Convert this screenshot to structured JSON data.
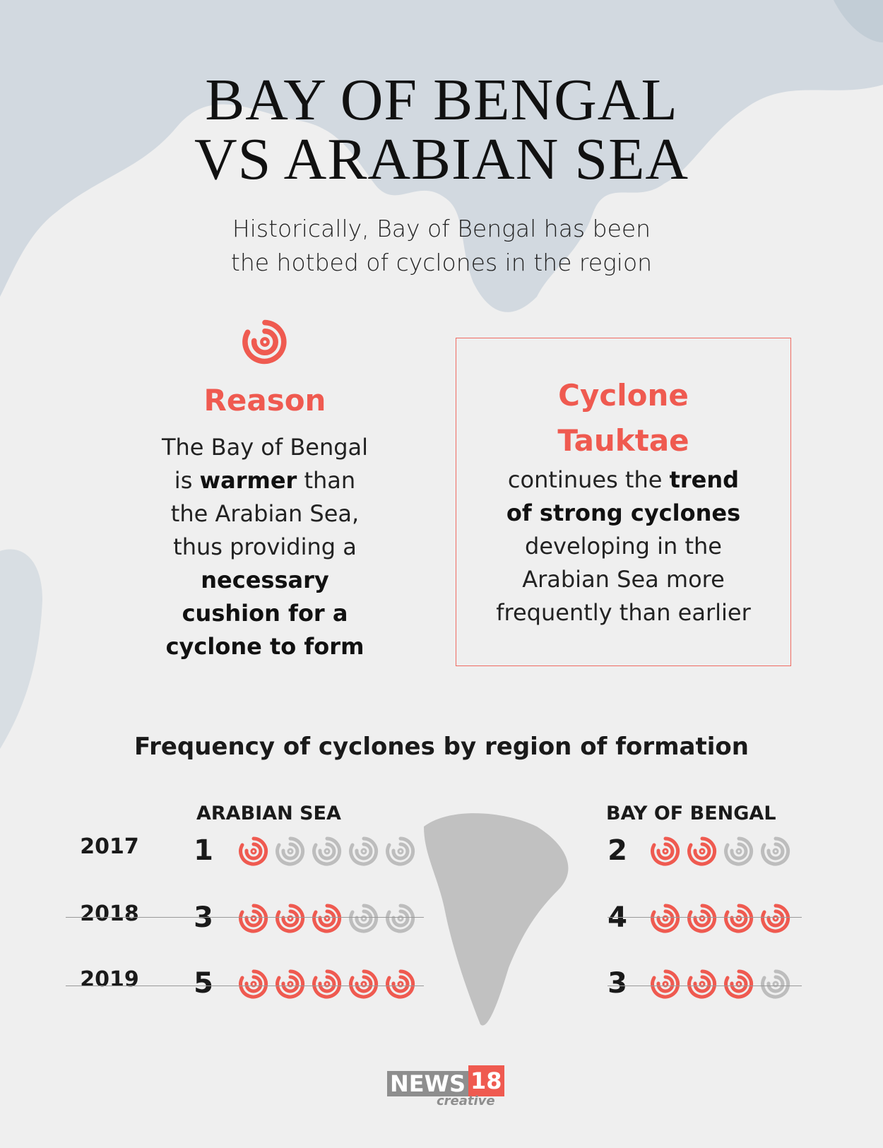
{
  "title": {
    "line1": "BAY OF BENGAL",
    "line2": "VS ARABIAN SEA"
  },
  "subtitle": {
    "line1": "Historically, Bay of Bengal has been",
    "line2": "the hotbed of cyclones in the region"
  },
  "reason": {
    "icon": "cyclone-icon",
    "heading": "Reason",
    "lines": [
      "The Bay of Bengal",
      "is ",
      "warmer",
      " than",
      "the Arabian Sea,",
      "thus providing a",
      "necessary",
      "cushion for a",
      "cyclone to form"
    ]
  },
  "tauktae": {
    "heading_line1": "Cyclone",
    "heading_line2": "Tauktae",
    "lines": [
      "continues the ",
      "trend",
      "of strong cyclones",
      "developing in the",
      "Arabian Sea more",
      "frequently than earlier"
    ]
  },
  "colors": {
    "accent": "#ef5a50",
    "inactive": "#bdbdbd",
    "land": "#c8d2db"
  },
  "chart_data": {
    "type": "table",
    "title": "Frequency of cyclones by region of formation",
    "columns": [
      "ARABIAN SEA",
      "BAY OF BENGAL"
    ],
    "rows": [
      {
        "year": "2017",
        "arabian_sea": 1,
        "bay_of_bengal": 2
      },
      {
        "year": "2018",
        "arabian_sea": 3,
        "bay_of_bengal": 4
      },
      {
        "year": "2019",
        "arabian_sea": 5,
        "bay_of_bengal": 3
      }
    ],
    "arabian_icons_total": 5,
    "bengal_icons_total": 4
  },
  "logo": {
    "brand": "NEWS",
    "number": "18",
    "tagline": "creative"
  }
}
